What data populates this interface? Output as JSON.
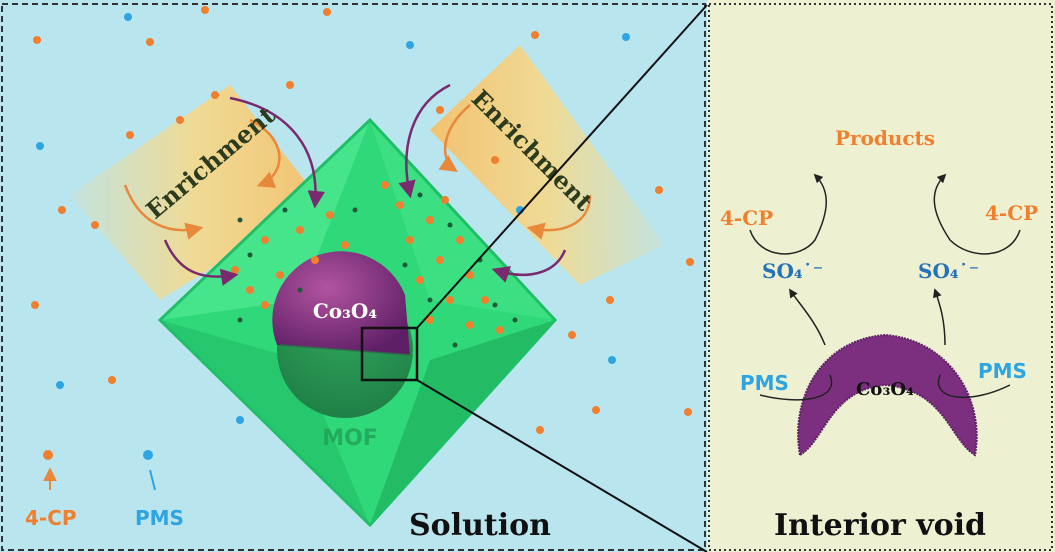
{
  "colors": {
    "solution_bg": "#b9e5ef",
    "void_bg": "#eef0d2",
    "cp_orange": "#f07f2e",
    "pms_blue": "#2ea4e0",
    "mof_green": "#2fd97a",
    "co3o4_purple": "#7b2f7e",
    "enrichment_yellow": "#f5d98a",
    "arrow_purple": "#7a2a6e"
  },
  "left_panel": {
    "title": "Solution",
    "mof_label": "MOF",
    "core_label": "Co₃O₄",
    "enrichment_left": "Enrichment",
    "enrichment_right": "Enrichment",
    "legend": {
      "cp_label": "4-CP",
      "pms_label": "PMS"
    }
  },
  "right_panel": {
    "title": "Interior void",
    "products_label": "Products",
    "cp_left": "4-CP",
    "cp_right": "4-CP",
    "radical_left": "SO₄˙⁻",
    "radical_right": "SO₄˙⁻",
    "pms_left": "PMS",
    "pms_right": "PMS",
    "core_label": "Co₃O₄"
  }
}
